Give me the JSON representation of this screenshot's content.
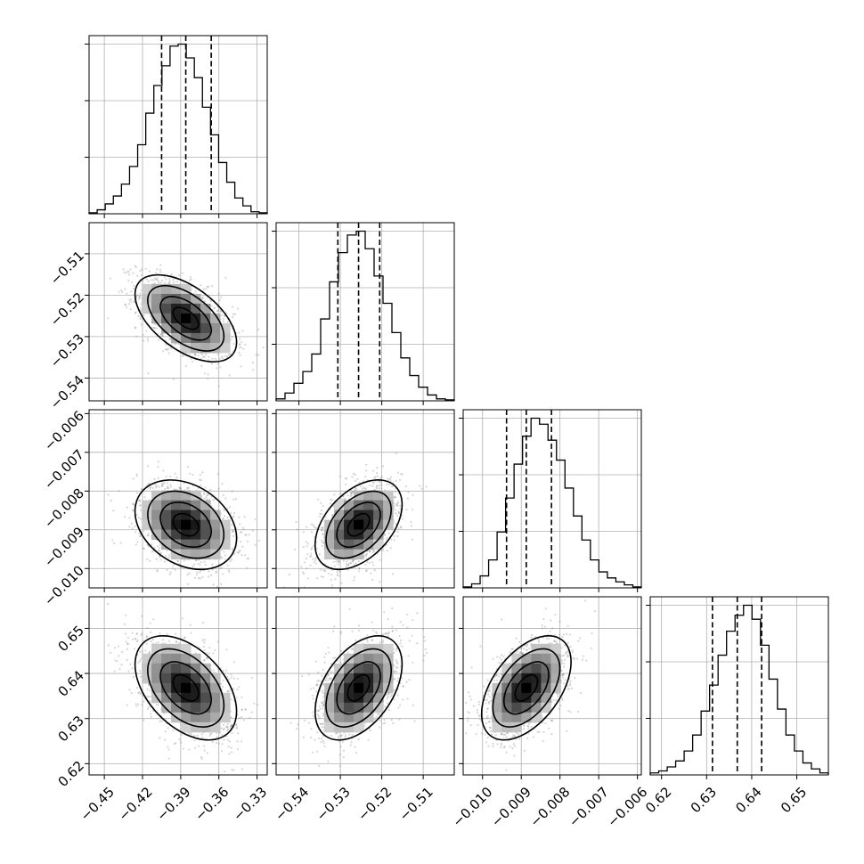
{
  "chart_data": {
    "type": "corner",
    "grid": true,
    "n_params": 4,
    "params": [
      {
        "index": 0,
        "range": [
          -0.462,
          -0.322
        ],
        "ticks": [
          -0.45,
          -0.42,
          -0.39,
          -0.36,
          -0.33
        ],
        "tick_labels": [
          "−0.45",
          "−0.42",
          "−0.39",
          "−0.36",
          "−0.33"
        ],
        "quantiles": [
          -0.405,
          -0.386,
          -0.366
        ],
        "std": 0.019,
        "hist": [
          0.5,
          2,
          5,
          9,
          15,
          24,
          35,
          51,
          65,
          75,
          85,
          86,
          79,
          69,
          54,
          40,
          26,
          16,
          8,
          4,
          1,
          0.5
        ]
      },
      {
        "index": 1,
        "range": [
          -0.5455,
          -0.5025
        ],
        "ticks": [
          -0.54,
          -0.53,
          -0.52,
          -0.51
        ],
        "tick_labels": [
          "−0.54",
          "−0.53",
          "−0.52",
          "−0.51"
        ],
        "quantiles": [
          -0.5306,
          -0.5256,
          -0.5205
        ],
        "std": 0.005,
        "hist": [
          1,
          4,
          9,
          15,
          24,
          42,
          61,
          76,
          85,
          87,
          78,
          64,
          50,
          35,
          22,
          13,
          7,
          3,
          1,
          0.5
        ]
      },
      {
        "index": 2,
        "range": [
          -0.0105,
          -0.0059
        ],
        "ticks": [
          -0.01,
          -0.009,
          -0.008,
          -0.007,
          -0.006
        ],
        "tick_labels": [
          "−0.010",
          "−0.009",
          "−0.008",
          "−0.007",
          "−0.006"
        ],
        "tick_labels_y": [
          "−0.006",
          "−0.007",
          "−0.008",
          "−0.009",
          "−0.010"
        ],
        "quantiles": [
          -0.00938,
          -0.00887,
          -0.00822
        ],
        "std": 0.00055,
        "hist": [
          0.5,
          2,
          6,
          14,
          28,
          45,
          62,
          76,
          85,
          82,
          74,
          64,
          50,
          36,
          24,
          14,
          8,
          5,
          3,
          1.5,
          0.5
        ]
      },
      {
        "index": 3,
        "range": [
          0.6175,
          0.657
        ],
        "ticks": [
          0.62,
          0.63,
          0.64,
          0.65
        ],
        "tick_labels": [
          "0.62",
          "0.63",
          "0.64",
          "0.65"
        ],
        "quantiles": [
          0.6313,
          0.6368,
          0.6422
        ],
        "std": 0.0055,
        "hist": [
          1,
          2,
          4,
          7,
          12,
          20,
          32,
          45,
          60,
          72,
          80,
          85,
          78,
          65,
          48,
          33,
          20,
          12,
          6,
          3,
          1
        ]
      }
    ],
    "pairs": [
      {
        "row": 1,
        "col": 0,
        "rho": -0.55
      },
      {
        "row": 2,
        "col": 0,
        "rho": -0.3
      },
      {
        "row": 2,
        "col": 1,
        "rho": 0.45
      },
      {
        "row": 3,
        "col": 0,
        "rho": -0.45
      },
      {
        "row": 3,
        "col": 1,
        "rho": 0.45
      },
      {
        "row": 3,
        "col": 2,
        "rho": 0.5
      }
    ],
    "contour_levels": [
      "0.5-sigma",
      "1-sigma",
      "1.5-sigma",
      "2-sigma"
    ]
  }
}
